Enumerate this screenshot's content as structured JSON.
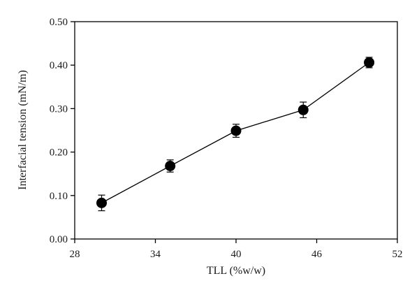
{
  "chart_data": {
    "type": "line",
    "title": "",
    "xlabel": "TLL (%w/w)",
    "ylabel": "Interfacial tension (mN/m)",
    "xlim": [
      28,
      52
    ],
    "ylim": [
      0.0,
      0.5
    ],
    "x_ticks": [
      28,
      34,
      40,
      46,
      52
    ],
    "y_ticks": [
      "0.00",
      "0.10",
      "0.20",
      "0.30",
      "0.40",
      "0.50"
    ],
    "grid": false,
    "legend": "none",
    "marker": "filled-circle",
    "line_color": "#000000",
    "series": [
      {
        "x": [
          30.0,
          35.1,
          40.0,
          45.0,
          49.9
        ],
        "y": [
          0.083,
          0.168,
          0.249,
          0.297,
          0.406
        ],
        "error": [
          0.018,
          0.014,
          0.015,
          0.018,
          0.012
        ]
      }
    ]
  }
}
